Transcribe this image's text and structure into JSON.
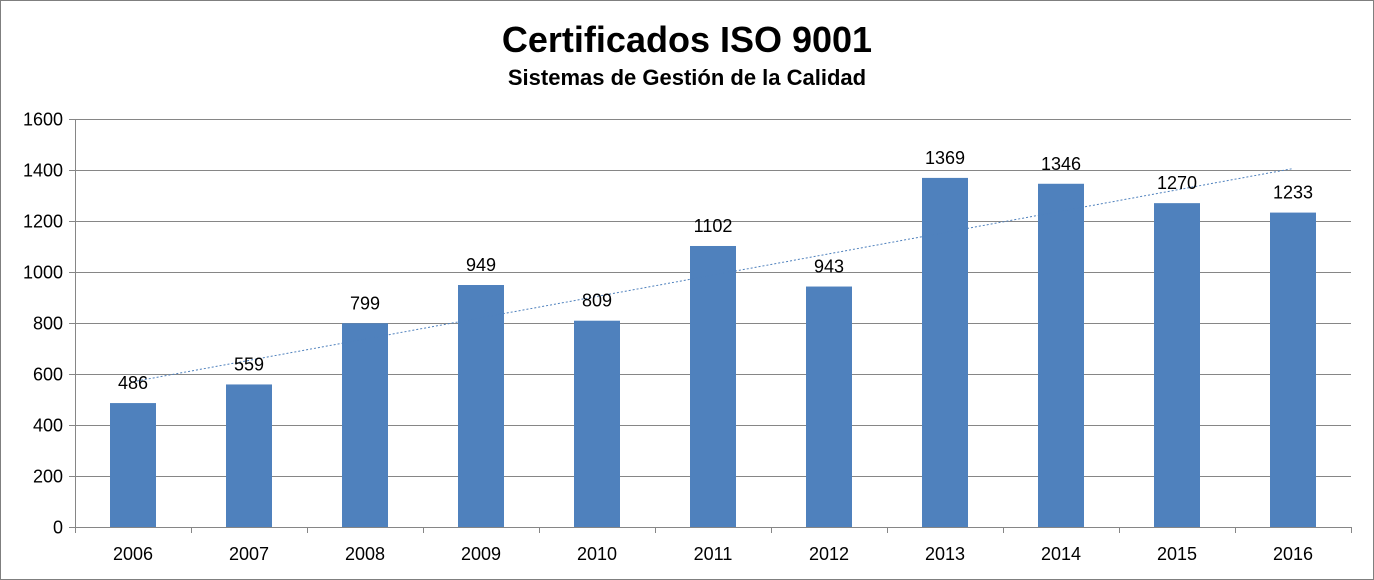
{
  "chart_data": {
    "type": "bar",
    "title": "Certificados ISO 9001",
    "subtitle": "Sistemas de Gestión de la Calidad",
    "xlabel": "",
    "ylabel": "",
    "categories": [
      "2006",
      "2007",
      "2008",
      "2009",
      "2010",
      "2011",
      "2012",
      "2013",
      "2014",
      "2015",
      "2016"
    ],
    "series": [
      {
        "values": [
          486,
          559,
          799,
          949,
          809,
          1102,
          943,
          1369,
          1346,
          1270,
          1233
        ],
        "color": "#4f81bd"
      }
    ],
    "data_labels": [
      "486",
      "559",
      "799",
      "949",
      "809",
      "1102",
      "943",
      "1369",
      "1346",
      "1270",
      "1233"
    ],
    "ylim": [
      0,
      1600
    ],
    "yticks": [
      0,
      200,
      400,
      600,
      800,
      1000,
      1200,
      1400,
      1600
    ],
    "ytick_labels": [
      "0",
      "200",
      "400",
      "600",
      "800",
      "1000",
      "1200",
      "1400",
      "1600"
    ],
    "grid": true,
    "legend": "none",
    "trendline": {
      "type": "linear",
      "style": "dotted",
      "color": "#4f81bd"
    }
  }
}
